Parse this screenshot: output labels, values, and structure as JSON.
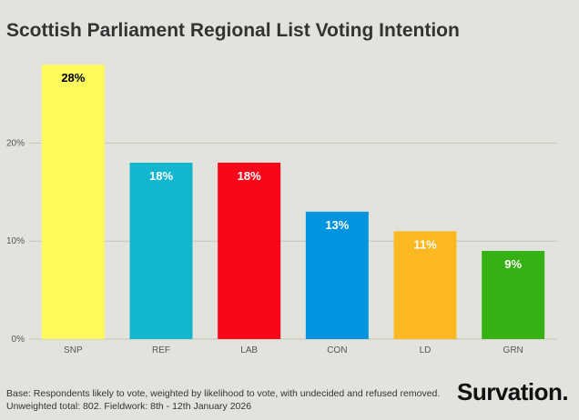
{
  "header": {
    "title": "Scottish Parliament Regional List Voting Intention"
  },
  "chart_data": {
    "type": "bar",
    "title": "Scottish Parliament Regional List Voting Intention",
    "xlabel": "",
    "ylabel": "",
    "ylim": [
      0,
      30
    ],
    "yticks": [
      0,
      10,
      20
    ],
    "ytick_labels": [
      "0%",
      "10%",
      "20%"
    ],
    "grid": true,
    "categories": [
      "SNP",
      "REF",
      "LAB",
      "CON",
      "LD",
      "GRN"
    ],
    "values": [
      28,
      18,
      18,
      13,
      11,
      9
    ],
    "data_labels": [
      "28%",
      "18%",
      "18%",
      "13%",
      "11%",
      "9%"
    ],
    "colors": [
      "#fefa5c",
      "#12b6cf",
      "#f8071b",
      "#0093e0",
      "#fbb821",
      "#36b114"
    ],
    "label_colors": [
      "#000000",
      "#ffffff",
      "#ffffff",
      "#ffffff",
      "#ffffff",
      "#ffffff"
    ]
  },
  "footer": {
    "note_line1": "Base: Respondents likely to vote, weighted by likelihood to vote, with undecided and refused removed.",
    "note_line2": "Unweighted total: 802. Fieldwork: 8th - 12th January 2026",
    "brand": "Survation."
  }
}
